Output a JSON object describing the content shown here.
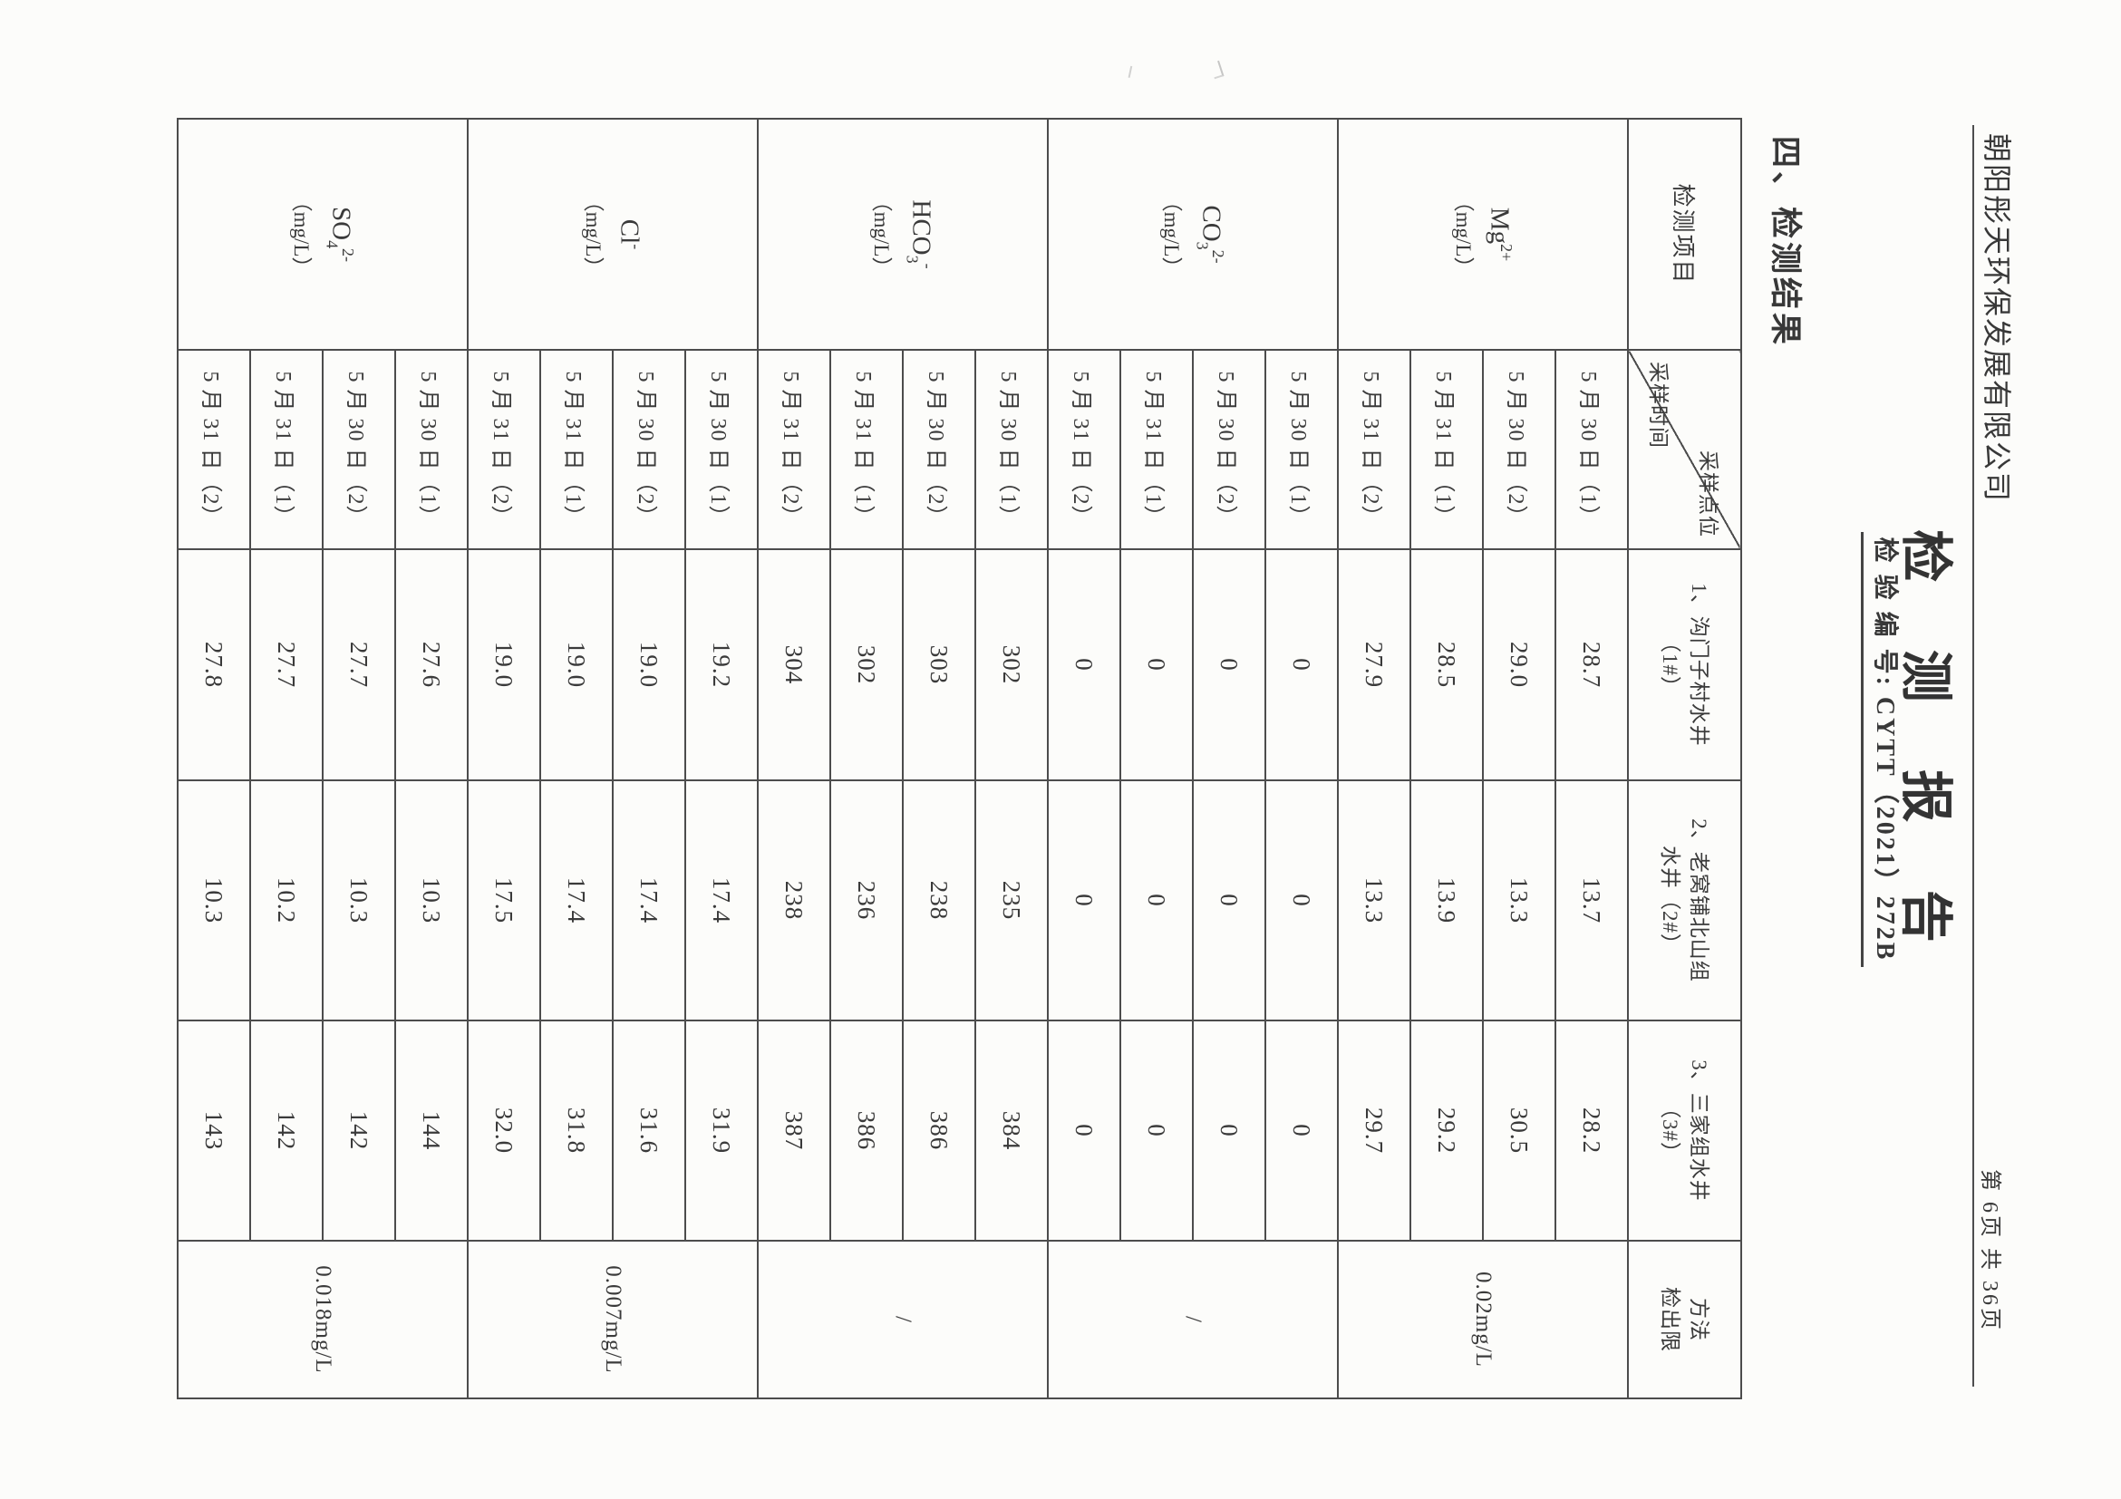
{
  "page": {
    "company": "朝阳彤天环保发展有限公司",
    "page_info": "第 6页  共 36页",
    "title": "检 测 报 告",
    "report_no_line": "检 验 编 号: CYTT（2021）272B",
    "section": "四、检测结果",
    "paper_color": "#fcfcfa",
    "ink_color": "#3a3a3a"
  },
  "table": {
    "col1_header": "检测项目",
    "corner": {
      "top_right": "采样点位",
      "bottom_left": "采样时间"
    },
    "site_headers": [
      {
        "line1": "1、沟门子村水井",
        "line2": "（1#）"
      },
      {
        "line1": "2、老窝铺北山组",
        "line2": "水井（2#）"
      },
      {
        "line1": "3、三家组水井",
        "line2": "（3#）"
      },
      {
        "line1": "方法",
        "line2": "检出限"
      }
    ],
    "times": [
      "5 月 30 日（1）",
      "5 月 30 日（2）",
      "5 月 31 日（1）",
      "5 月 31 日（2）"
    ],
    "groups": [
      {
        "formula": {
          "base": "Mg",
          "sub": "",
          "sup": "2+"
        },
        "unit": "（mg/L）",
        "limit": "0.02mg/L",
        "values": [
          [
            "28.7",
            "13.7",
            "28.2"
          ],
          [
            "29.0",
            "13.3",
            "30.5"
          ],
          [
            "28.5",
            "13.9",
            "29.2"
          ],
          [
            "27.9",
            "13.3",
            "29.7"
          ]
        ]
      },
      {
        "formula": {
          "base": "CO",
          "sub": "3",
          "sup": "2-"
        },
        "unit": "（mg/L）",
        "limit": "/",
        "values": [
          [
            "0",
            "0",
            "0"
          ],
          [
            "0",
            "0",
            "0"
          ],
          [
            "0",
            "0",
            "0"
          ],
          [
            "0",
            "0",
            "0"
          ]
        ]
      },
      {
        "formula": {
          "base": "HCO",
          "sub": "3",
          "sup": "-"
        },
        "unit": "（mg/L）",
        "limit": "/",
        "values": [
          [
            "302",
            "235",
            "384"
          ],
          [
            "303",
            "238",
            "386"
          ],
          [
            "302",
            "236",
            "386"
          ],
          [
            "304",
            "238",
            "387"
          ]
        ]
      },
      {
        "formula": {
          "base": "Cl",
          "sub": "",
          "sup": "-"
        },
        "unit": "（mg/L）",
        "limit": "0.007mg/L",
        "values": [
          [
            "19.2",
            "17.4",
            "31.9"
          ],
          [
            "19.0",
            "17.4",
            "31.6"
          ],
          [
            "19.0",
            "17.4",
            "31.8"
          ],
          [
            "19.0",
            "17.5",
            "32.0"
          ]
        ]
      },
      {
        "formula": {
          "base": "SO",
          "sub": "4",
          "sup": "2-"
        },
        "unit": "（mg/L）",
        "limit": "0.018mg/L",
        "values": [
          [
            "27.6",
            "10.3",
            "144"
          ],
          [
            "27.7",
            "10.3",
            "142"
          ],
          [
            "27.7",
            "10.2",
            "142"
          ],
          [
            "27.8",
            "10.3",
            "143"
          ]
        ]
      }
    ]
  }
}
